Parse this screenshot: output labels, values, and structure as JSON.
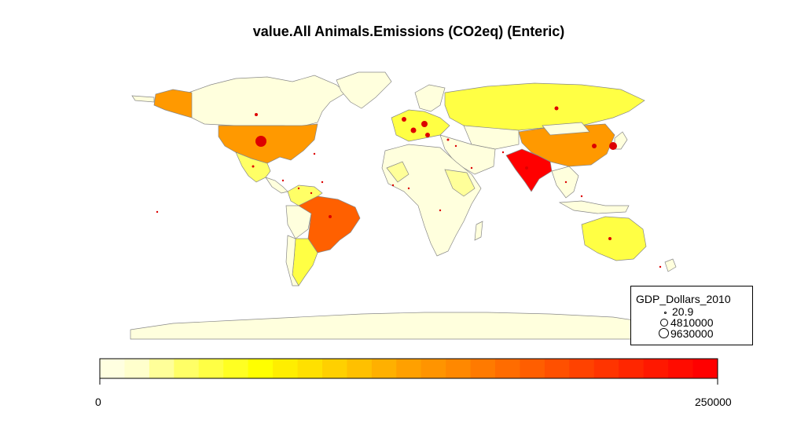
{
  "title": "value.All Animals.Emissions (CO2eq) (Enteric)",
  "legend": {
    "title": "GDP_Dollars_2010",
    "entries": [
      "20.9",
      "4810000",
      "9630000"
    ]
  },
  "color_scale": {
    "min_label": "0",
    "max_label": "250000",
    "colors": [
      "#ffffe0",
      "#ffffcc",
      "#ffff99",
      "#ffff66",
      "#ffff44",
      "#ffff22",
      "#ffff00",
      "#ffee00",
      "#ffe000",
      "#ffd000",
      "#ffc000",
      "#ffb000",
      "#ffa000",
      "#ff9400",
      "#ff8800",
      "#ff7a00",
      "#ff6c00",
      "#ff5e00",
      "#ff5000",
      "#ff4200",
      "#ff3400",
      "#ff2600",
      "#ff1800",
      "#ff0c00",
      "#ff0000"
    ]
  },
  "fill_colors": {
    "none": "#ffffdd",
    "light": "#ffff99",
    "yellow": "#ffff44",
    "orange": "#ff9900",
    "dark_orange": "#ff6000",
    "red": "#ff0000",
    "border": "#888888",
    "marker": "#dd0000"
  }
}
